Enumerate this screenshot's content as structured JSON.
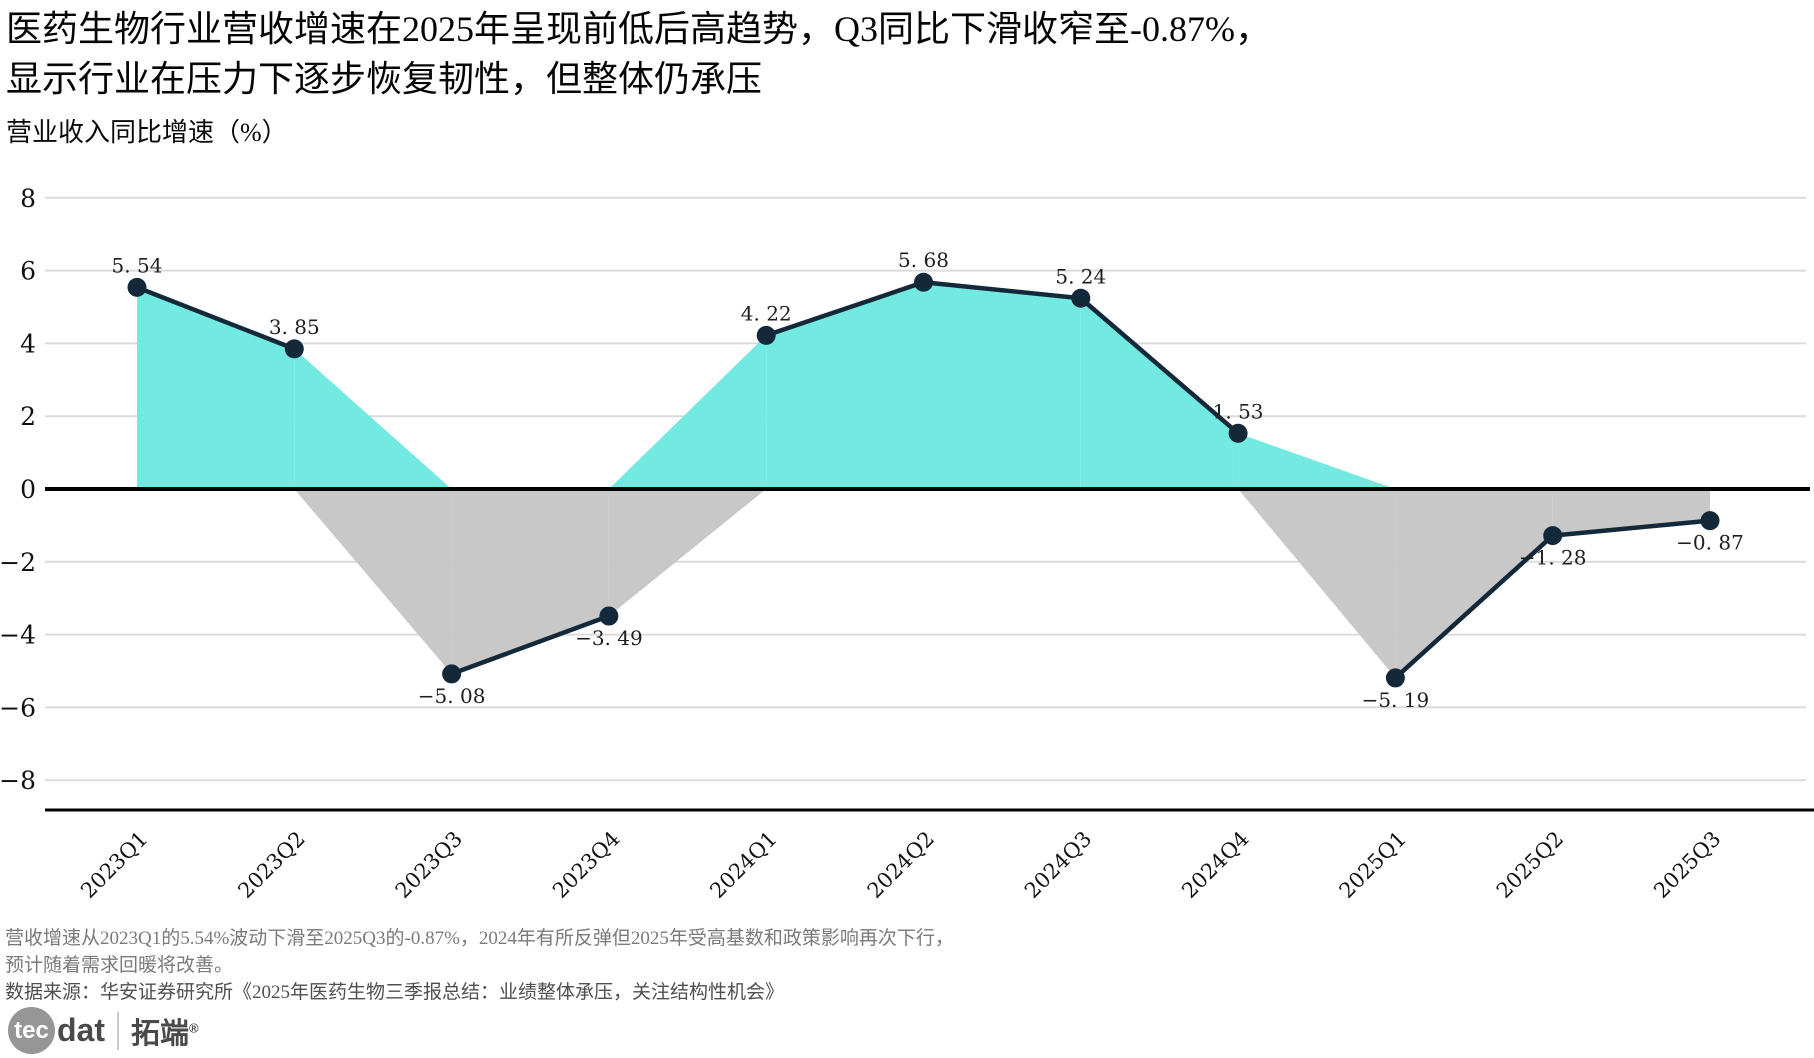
{
  "page": {
    "background": "#ffffff"
  },
  "title": {
    "line1": "医药生物行业营收增速在2025年呈现前低后高趋势，Q3同比下滑收窄至-0.87%，",
    "line2": "显示行业在压力下逐步恢复韧性，但整体仍承压"
  },
  "subtitle": "营业收入同比增速（%）",
  "chart_data": {
    "type": "area",
    "title": "营业收入同比增速（%）",
    "categories": [
      "2023Q1",
      "2023Q2",
      "2023Q3",
      "2023Q4",
      "2024Q1",
      "2024Q2",
      "2024Q3",
      "2024Q4",
      "2025Q1",
      "2025Q2",
      "2025Q3"
    ],
    "values": [
      5.54,
      3.85,
      -5.08,
      -3.49,
      4.22,
      5.68,
      5.24,
      1.53,
      -5.19,
      -1.28,
      -0.87
    ],
    "point_labels": [
      "5. 54",
      "3. 85",
      "−5. 08",
      "−3. 49",
      "4. 22",
      "5. 68",
      "5. 24",
      "1. 53",
      "−5. 19",
      "−1. 28",
      "−0. 87"
    ],
    "xlabel": "",
    "ylabel": "",
    "ylim": [
      -9,
      9
    ],
    "yticks": [
      8,
      6,
      4,
      2,
      0,
      -2,
      -4,
      -6,
      -8
    ],
    "ytick_labels": [
      "8",
      "6",
      "4",
      "2",
      "0",
      "−2",
      "−4",
      "−6",
      "−8"
    ],
    "grid": true,
    "legend": "none",
    "fill_rule": "positive area filled cyan, negative area filled gray, fills clamped to zero per segment; line stroked only between same-sign points",
    "colors": {
      "positive_fill": "#72EAE2",
      "negative_fill": "#C8C8C8",
      "line": "#13293A",
      "marker": "#13293A",
      "zero_axis": "#000000",
      "bottom_axis": "#000000",
      "grid": "#DBDBDB",
      "tick_text": "#111111",
      "point_label_text": "#1f1f1f"
    }
  },
  "footer": {
    "note_line1": "营收增速从2023Q1的5.54%波动下滑至2025Q3的-0.87%，2024年有所反弹但2025年受高基数和政策影响再次下行，",
    "note_line2": "预计随着需求回暖将改善。",
    "source": "数据来源：华安证券研究所《2025年医药生物三季报总结：业绩整体承压，关注结构性机会》"
  },
  "logo": {
    "tec": "tec",
    "dat": "dat",
    "brand_cn": "拓端",
    "reg": "®"
  }
}
